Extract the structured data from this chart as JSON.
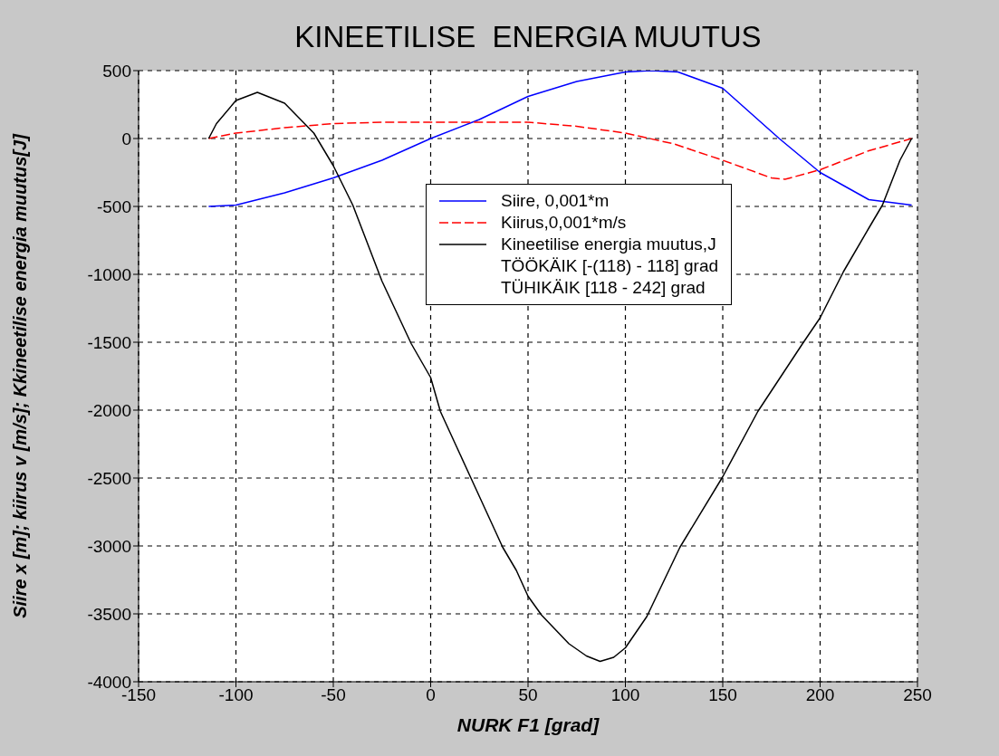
{
  "chart_data": {
    "type": "line",
    "title": "KINEETILISE  ENERGIA MUUTUS",
    "xlabel": "NURK F1 [grad]",
    "ylabel": "Siire x [m]; kiirus v [m/s]; Kkineetilise energia muutus[J]",
    "xlim": [
      -150,
      250
    ],
    "xticks": [
      -150,
      -100,
      -50,
      0,
      50,
      100,
      150,
      200,
      250
    ],
    "ylim": [
      -4000,
      500
    ],
    "yticks": [
      -4000,
      -3500,
      -3000,
      -2500,
      -2000,
      -1500,
      -1000,
      -500,
      0,
      500
    ],
    "grid": true,
    "legend": "right",
    "marker": "none",
    "annotations": [
      "TÖÖKÄIK [-(118) - 118] grad",
      "TÜHIKÄIK [118 - 242] grad"
    ],
    "series": [
      {
        "name": "Siire, 0,001*m",
        "color": "#0000ff",
        "line_style": "solid",
        "x": [
          -114,
          -100,
          -75,
          -50,
          -25,
          0,
          25,
          50,
          75,
          100,
          113,
          127,
          150,
          179,
          200,
          225,
          247
        ],
        "values": [
          -500,
          -490,
          -400,
          -290,
          -160,
          0,
          140,
          310,
          420,
          490,
          500,
          490,
          370,
          0,
          -250,
          -450,
          -490
        ]
      },
      {
        "name": "Kiirus,0,001*m/s",
        "color": "#ff0000",
        "line_style": "dashed",
        "x": [
          -114,
          -100,
          -75,
          -50,
          -25,
          0,
          25,
          50,
          75,
          100,
          125,
          150,
          175,
          182,
          200,
          225,
          247
        ],
        "values": [
          0,
          40,
          80,
          110,
          120,
          120,
          120,
          120,
          90,
          40,
          -40,
          -160,
          -290,
          -300,
          -230,
          -90,
          0
        ]
      },
      {
        "name": "Kineetilise energia muutus,J",
        "color": "#000000",
        "line_style": "solid",
        "x": [
          -114,
          -110,
          -100,
          -89,
          -75,
          -60,
          -50,
          -40,
          -25,
          -10,
          0,
          5,
          21,
          37,
          44,
          50,
          57,
          71,
          80,
          87,
          94,
          100,
          111,
          128,
          150,
          168,
          191,
          200,
          212,
          225,
          232,
          241,
          247
        ],
        "values": [
          0,
          110,
          280,
          340,
          260,
          40,
          -200,
          -490,
          -1050,
          -1510,
          -1760,
          -2010,
          -2510,
          -3010,
          -3180,
          -3370,
          -3510,
          -3720,
          -3810,
          -3850,
          -3820,
          -3750,
          -3520,
          -3010,
          -2490,
          -2010,
          -1510,
          -1320,
          -980,
          -660,
          -490,
          -160,
          0
        ]
      }
    ]
  }
}
